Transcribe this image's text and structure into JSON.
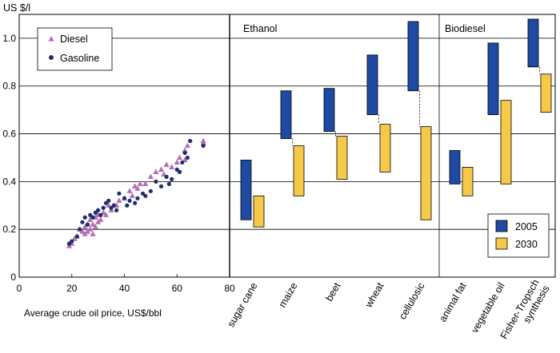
{
  "chart_data": {
    "type": "scatter+floating-bar",
    "y_unit_label": "US $/l",
    "ylim": [
      0,
      1.1
    ],
    "yticks": [
      "0",
      "0.2",
      "0.4",
      "0.6",
      "0.8",
      "1.0"
    ],
    "grid": true,
    "scatter_panel": {
      "type": "scatter",
      "xlabel": "Average crude oil price, US$/bbl",
      "xlim": [
        0,
        80
      ],
      "xticks": [
        "0",
        "20",
        "40",
        "60",
        "80"
      ],
      "legend": [
        "Diesel",
        "Gasoline"
      ],
      "legend_position": "top-left",
      "series": [
        {
          "name": "Diesel",
          "marker": "triangle",
          "color": "#b46fb4",
          "points": [
            [
              19,
              0.13
            ],
            [
              20,
              0.14
            ],
            [
              21,
              0.16
            ],
            [
              22,
              0.17
            ],
            [
              23,
              0.2
            ],
            [
              24,
              0.19
            ],
            [
              25,
              0.18
            ],
            [
              25,
              0.21
            ],
            [
              26,
              0.22
            ],
            [
              26,
              0.19
            ],
            [
              27,
              0.2
            ],
            [
              27,
              0.24
            ],
            [
              28,
              0.18
            ],
            [
              28,
              0.22
            ],
            [
              29,
              0.25
            ],
            [
              29,
              0.21
            ],
            [
              30,
              0.23
            ],
            [
              30,
              0.26
            ],
            [
              31,
              0.24
            ],
            [
              32,
              0.27
            ],
            [
              33,
              0.26
            ],
            [
              34,
              0.3
            ],
            [
              35,
              0.28
            ],
            [
              36,
              0.3
            ],
            [
              37,
              0.3
            ],
            [
              38,
              0.32
            ],
            [
              40,
              0.33
            ],
            [
              42,
              0.36
            ],
            [
              43,
              0.34
            ],
            [
              44,
              0.38
            ],
            [
              45,
              0.37
            ],
            [
              46,
              0.39
            ],
            [
              48,
              0.39
            ],
            [
              50,
              0.42
            ],
            [
              52,
              0.44
            ],
            [
              54,
              0.45
            ],
            [
              55,
              0.43
            ],
            [
              56,
              0.47
            ],
            [
              58,
              0.46
            ],
            [
              60,
              0.48
            ],
            [
              61,
              0.5
            ],
            [
              63,
              0.53
            ],
            [
              63,
              0.49
            ],
            [
              64,
              0.55
            ],
            [
              70,
              0.57
            ],
            [
              70,
              0.56
            ]
          ]
        },
        {
          "name": "Gasoline",
          "marker": "circle",
          "color": "#1d2f6f",
          "points": [
            [
              19,
              0.14
            ],
            [
              20,
              0.15
            ],
            [
              22,
              0.17
            ],
            [
              23,
              0.2
            ],
            [
              24,
              0.23
            ],
            [
              25,
              0.25
            ],
            [
              26,
              0.22
            ],
            [
              27,
              0.26
            ],
            [
              28,
              0.25
            ],
            [
              29,
              0.27
            ],
            [
              30,
              0.28
            ],
            [
              31,
              0.26
            ],
            [
              32,
              0.29
            ],
            [
              33,
              0.31
            ],
            [
              34,
              0.32
            ],
            [
              35,
              0.29
            ],
            [
              36,
              0.3
            ],
            [
              37,
              0.28
            ],
            [
              38,
              0.35
            ],
            [
              40,
              0.33
            ],
            [
              41,
              0.3
            ],
            [
              42,
              0.32
            ],
            [
              44,
              0.31
            ],
            [
              45,
              0.33
            ],
            [
              47,
              0.35
            ],
            [
              48,
              0.34
            ],
            [
              50,
              0.36
            ],
            [
              52,
              0.4
            ],
            [
              54,
              0.38
            ],
            [
              56,
              0.42
            ],
            [
              57,
              0.39
            ],
            [
              58,
              0.41
            ],
            [
              60,
              0.45
            ],
            [
              61,
              0.44
            ],
            [
              62,
              0.48
            ],
            [
              63,
              0.52
            ],
            [
              64,
              0.5
            ],
            [
              65,
              0.57
            ],
            [
              70,
              0.55
            ]
          ]
        }
      ]
    },
    "range_panel": {
      "type": "floating-bar",
      "legend": [
        "2005",
        "2030"
      ],
      "legend_position": "bottom-right",
      "colors": {
        "2005": "#1f4aa3",
        "2030": "#f7c948"
      },
      "groups": [
        {
          "title": "Ethanol",
          "categories": [
            {
              "label": "sugar cane",
              "r2005": [
                0.24,
                0.49
              ],
              "r2030": [
                0.21,
                0.34
              ]
            },
            {
              "label": "maize",
              "r2005": [
                0.58,
                0.78
              ],
              "r2030": [
                0.34,
                0.55
              ]
            },
            {
              "label": "beet",
              "r2005": [
                0.61,
                0.79
              ],
              "r2030": [
                0.41,
                0.59
              ]
            },
            {
              "label": "wheat",
              "r2005": [
                0.68,
                0.93
              ],
              "r2030": [
                0.44,
                0.64
              ]
            },
            {
              "label": "cellulosic",
              "r2005": [
                0.78,
                1.07
              ],
              "r2030": [
                0.24,
                0.63
              ]
            }
          ]
        },
        {
          "title": "Biodiesel",
          "categories": [
            {
              "label": "animal fat",
              "r2005": [
                0.39,
                0.53
              ],
              "r2030": [
                0.34,
                0.46
              ]
            },
            {
              "label": "vegetable oil",
              "r2005": [
                0.68,
                0.98
              ],
              "r2030": [
                0.39,
                0.74
              ]
            },
            {
              "label": "Fisher-Tropsch synthesis",
              "label_lines": [
                "Fisher-Tropsch",
                "synthesis"
              ],
              "r2005": [
                0.88,
                1.08
              ],
              "r2030": [
                0.69,
                0.85
              ]
            }
          ]
        }
      ]
    }
  }
}
